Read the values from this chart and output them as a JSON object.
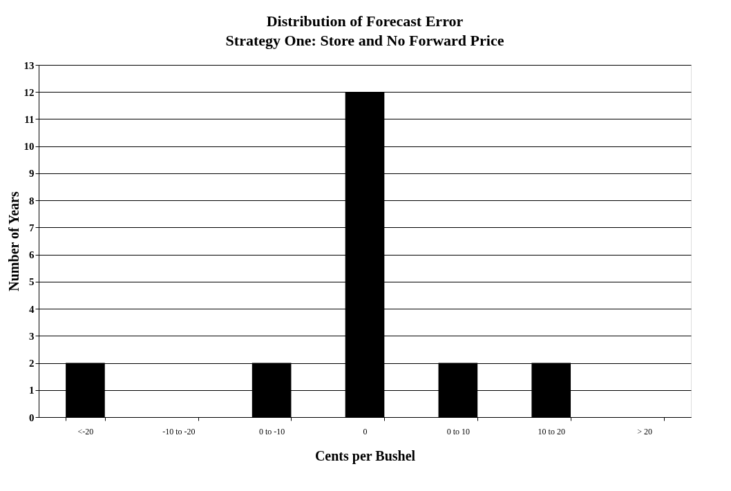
{
  "chart_data": {
    "type": "bar",
    "title": "Distribution of Forecast Error",
    "subtitle": "Strategy One: Store and No Forward Price",
    "xlabel": "Cents per Bushel",
    "ylabel": "Number of Years",
    "categories": [
      "<-20",
      "-10 to -20",
      "0 to -10",
      "0",
      "0 to 10",
      "10 to 20",
      "> 20"
    ],
    "values": [
      2,
      0,
      2,
      12,
      2,
      2,
      0
    ],
    "color": "#000000",
    "ylim": [
      0,
      13
    ],
    "yticks": [
      0,
      1,
      2,
      3,
      4,
      5,
      6,
      7,
      8,
      9,
      10,
      11,
      12,
      13
    ],
    "grid": "y"
  }
}
